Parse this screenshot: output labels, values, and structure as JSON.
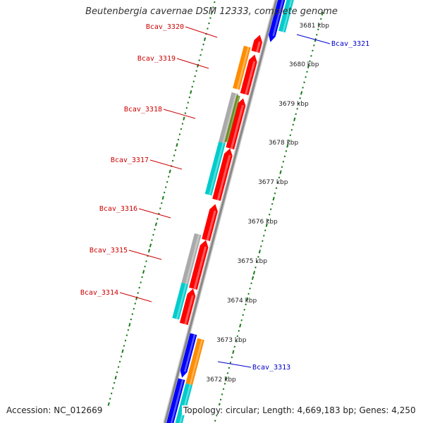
{
  "title": "Beutenbergia cavernae DSM 12333, complete genome",
  "accession": "Accession: NC_012669",
  "topology": "Topology: circular; Length: 4,669,183 bp; Genes: 4,250",
  "colors": {
    "forward_label": "#cc0000",
    "reverse_label": "#0000cc",
    "cds_red": "#ff0000",
    "cds_blue": "#0000ff",
    "orange": "#ff8c00",
    "cyan": "#00cccc",
    "gray": "#aaaaaa",
    "olive": "#6b8e23",
    "backbone": "#888888",
    "dots": "#1a7a1a"
  },
  "ticks": [
    "3681 kbp",
    "3680 kbp",
    "3679 kbp",
    "3678 kbp",
    "3677 kbp",
    "3676 kbp",
    "3675 kbp",
    "3674 kbp",
    "3673 kbp",
    "3672 kbp"
  ],
  "gene_labels": [
    {
      "text": "Bcav_3320",
      "strand": "forward"
    },
    {
      "text": "Bcav_3319",
      "strand": "forward"
    },
    {
      "text": "Bcav_3318",
      "strand": "forward"
    },
    {
      "text": "Bcav_3317",
      "strand": "forward"
    },
    {
      "text": "Bcav_3316",
      "strand": "forward"
    },
    {
      "text": "Bcav_3315",
      "strand": "forward"
    },
    {
      "text": "Bcav_3314",
      "strand": "forward"
    },
    {
      "text": "Bcav_3321",
      "strand": "reverse"
    },
    {
      "text": "Bcav_3313",
      "strand": "reverse"
    }
  ]
}
